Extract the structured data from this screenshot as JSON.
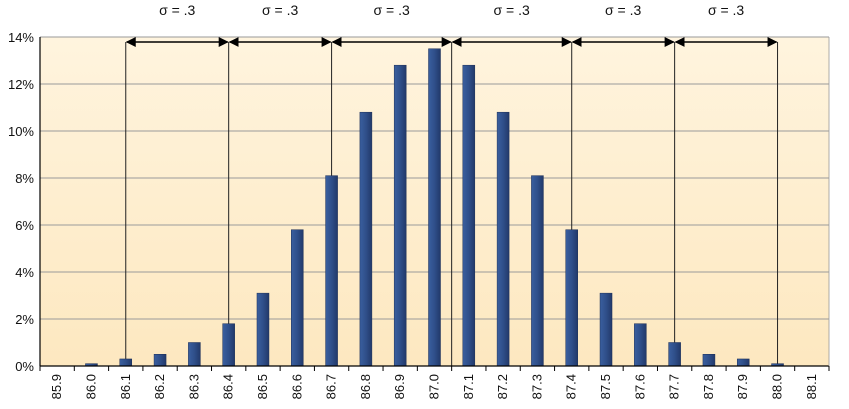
{
  "chart_data": {
    "type": "bar",
    "title": "",
    "xlabel": "",
    "ylabel": "",
    "categories": [
      "85.9",
      "86.0",
      "86.1",
      "86.2",
      "86.3",
      "86.4",
      "86.5",
      "86.6",
      "86.7",
      "86.8",
      "86.9",
      "87.0",
      "87.1",
      "87.2",
      "87.3",
      "87.4",
      "87.5",
      "87.6",
      "87.7",
      "87.8",
      "87.9",
      "88.0",
      "88.1"
    ],
    "values": [
      0,
      0.1,
      0.3,
      0.5,
      1.0,
      1.8,
      3.1,
      5.8,
      8.1,
      10.8,
      12.8,
      13.5,
      12.8,
      10.8,
      8.1,
      5.8,
      3.1,
      1.8,
      1.0,
      0.5,
      0.3,
      0.1,
      0
    ],
    "ylim": [
      0,
      14
    ],
    "yticks": [
      0,
      2,
      4,
      6,
      8,
      10,
      12,
      14
    ],
    "ytick_labels": [
      "0%",
      "2%",
      "4%",
      "6%",
      "8%",
      "10%",
      "12%",
      "14%"
    ],
    "grid": true,
    "bar_color": "#2f4f8a",
    "background_color": "#fdeccb",
    "sigma_annotations": [
      {
        "label": "σ = .3",
        "from": 2.0,
        "to": 5.0
      },
      {
        "label": "σ = .3",
        "from": 5.0,
        "to": 8.0
      },
      {
        "label": "σ = .3",
        "from": 8.0,
        "to": 11.5
      },
      {
        "label": "σ = .3",
        "from": 11.5,
        "to": 15.0
      },
      {
        "label": "σ = .3",
        "from": 15.0,
        "to": 18.0
      },
      {
        "label": "σ = .3",
        "from": 18.0,
        "to": 21.0
      }
    ]
  }
}
